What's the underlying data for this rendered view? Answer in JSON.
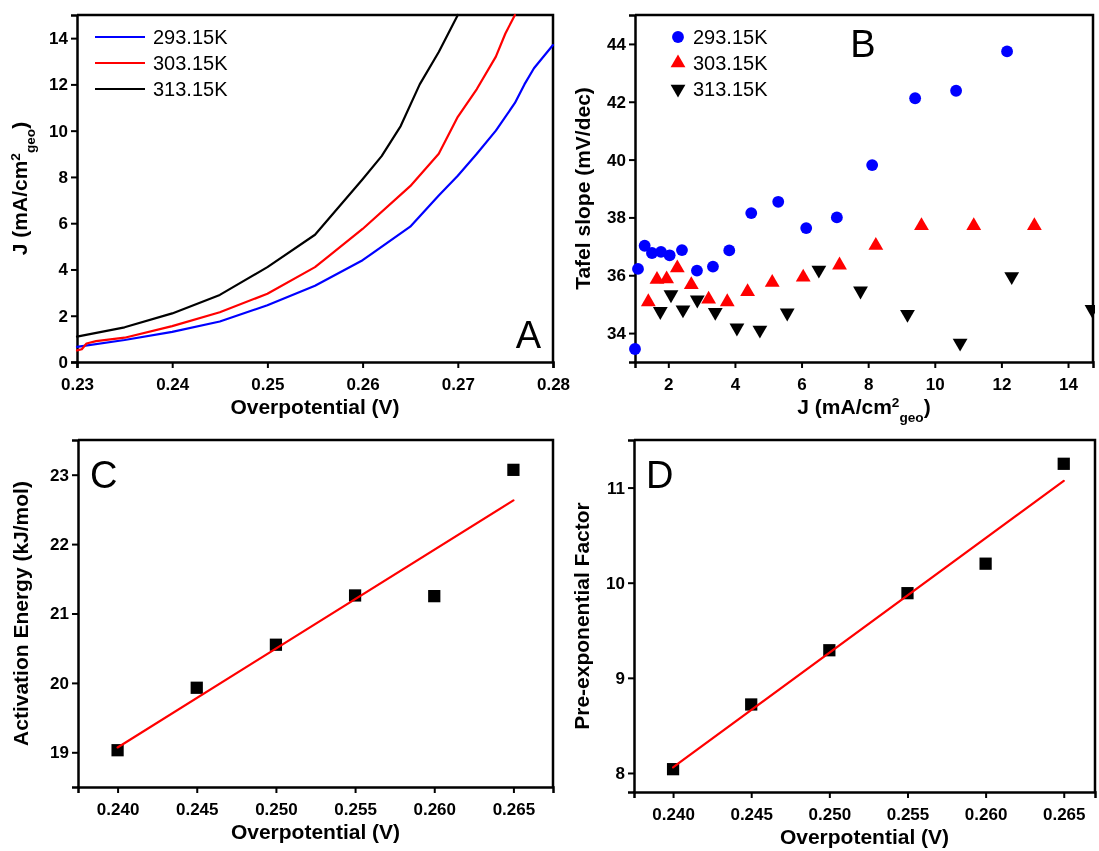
{
  "chart_data": [
    {
      "type": "line",
      "xlabel": "Overpotential (V)",
      "ylabel": "J (mA/cm$^{2}$$_{geo}$)",
      "annotations": [
        "A"
      ],
      "xlim": [
        0.23,
        0.28
      ],
      "xticks": [
        0.23,
        0.24,
        0.25,
        0.26,
        0.27,
        0.28
      ],
      "ylim": [
        0,
        15
      ],
      "yticks": [
        0,
        2,
        4,
        6,
        8,
        10,
        12,
        14
      ],
      "legend": "top left",
      "line_style": "solid",
      "series": [
        {
          "name": "293.15K",
          "color": "#0000ff",
          "x": [
            0.23,
            0.235,
            0.24,
            0.245,
            0.25,
            0.255,
            0.26,
            0.265,
            0.268,
            0.27,
            0.272,
            0.274,
            0.276,
            0.277,
            0.278,
            0.28
          ],
          "values": [
            0.65,
            0.95,
            1.3,
            1.75,
            2.45,
            3.3,
            4.4,
            5.85,
            7.2,
            8.05,
            9.0,
            10.0,
            11.2,
            12.0,
            12.7,
            13.7
          ]
        },
        {
          "name": "303.15K",
          "color": "#ff0000",
          "x": [
            0.23,
            0.2305,
            0.231,
            0.232,
            0.235,
            0.24,
            0.245,
            0.25,
            0.255,
            0.26,
            0.265,
            0.268,
            0.27,
            0.272,
            0.274,
            0.275,
            0.276
          ],
          "values": [
            0.5,
            0.55,
            0.8,
            0.9,
            1.05,
            1.55,
            2.15,
            2.95,
            4.1,
            5.75,
            7.6,
            9.0,
            10.6,
            11.8,
            13.2,
            14.2,
            15
          ]
        },
        {
          "name": "313.15K",
          "color": "#000000",
          "x": [
            0.23,
            0.235,
            0.24,
            0.245,
            0.25,
            0.255,
            0.26,
            0.262,
            0.264,
            0.266,
            0.268,
            0.27
          ],
          "values": [
            1.1,
            1.5,
            2.1,
            2.9,
            4.1,
            5.5,
            7.9,
            8.9,
            10.2,
            12.0,
            13.4,
            15
          ]
        }
      ]
    },
    {
      "type": "scatter",
      "xlabel": "J (mA/cm$^{2}$$_{geo}$)",
      "ylabel": "Tafel slope (mV/dec)",
      "annotations": [
        "B"
      ],
      "xlim": [
        1,
        14.75
      ],
      "xticks": [
        2,
        4,
        6,
        8,
        10,
        12,
        14
      ],
      "ylim": [
        33,
        45
      ],
      "yticks": [
        34,
        36,
        38,
        40,
        42,
        44
      ],
      "legend": "top left",
      "series": [
        {
          "name": "293.15K",
          "color": "#0000ff",
          "marker": "circle",
          "x": [
            1.0,
            1.09,
            1.29,
            1.51,
            1.78,
            2.04,
            2.41,
            2.86,
            3.34,
            3.83,
            4.49,
            5.3,
            6.14,
            7.06,
            8.12,
            9.41,
            10.64,
            12.17
          ],
          "values": [
            33.45,
            36.22,
            37.02,
            36.77,
            36.81,
            36.69,
            36.87,
            36.16,
            36.3,
            36.86,
            38.15,
            38.54,
            37.63,
            38.0,
            39.81,
            42.12,
            42.38,
            43.74
          ]
        },
        {
          "name": "303.15K",
          "color": "#ff0000",
          "marker": "triangle",
          "x": [
            1.4,
            1.66,
            1.95,
            2.27,
            2.69,
            3.21,
            3.77,
            4.38,
            5.12,
            6.05,
            7.14,
            8.23,
            9.6,
            11.17,
            12.99
          ],
          "values": [
            35.08,
            35.85,
            35.87,
            36.25,
            35.67,
            35.17,
            35.08,
            35.43,
            35.75,
            35.93,
            36.35,
            37.03,
            37.71,
            37.71,
            37.71
          ]
        },
        {
          "name": "313.15K",
          "color": "#000000",
          "marker": "triangle-down",
          "x": [
            1.76,
            2.08,
            2.44,
            2.87,
            3.41,
            4.06,
            4.75,
            5.57,
            6.52,
            7.77,
            9.18,
            10.76,
            12.31,
            14.72
          ],
          "values": [
            34.75,
            35.33,
            34.81,
            35.15,
            34.72,
            34.18,
            34.11,
            34.7,
            36.18,
            35.46,
            34.65,
            33.66,
            35.96,
            34.82
          ]
        }
      ]
    },
    {
      "type": "scatter",
      "xlabel": "Overpotential (V)",
      "ylabel": "Activation Energy (kJ/mol)",
      "annotations": [
        "C"
      ],
      "xlim": [
        0.2375,
        0.2675
      ],
      "xticks": [
        {
          "value": 0.24,
          "label": "0.240"
        },
        {
          "value": 0.245,
          "label": "0.245"
        },
        {
          "value": 0.25,
          "label": "0.250"
        },
        {
          "value": 0.255,
          "label": "0.255"
        },
        {
          "value": 0.26,
          "label": "0.260"
        },
        {
          "value": 0.265,
          "label": "0.265"
        }
      ],
      "ylim": [
        18.5,
        23.5
      ],
      "yticks": [
        19,
        20,
        21,
        22,
        23
      ],
      "series": [
        {
          "color": "#000000",
          "marker": "square",
          "x": [
            0.24,
            0.245,
            0.25,
            0.255,
            0.26,
            0.265
          ],
          "values": [
            19.03,
            19.93,
            20.55,
            21.26,
            21.25,
            23.07
          ]
        },
        {
          "type": "line",
          "color": "#ff0000",
          "x": [
            0.24,
            0.265
          ],
          "values": [
            19.07,
            22.63
          ]
        }
      ]
    },
    {
      "type": "scatter",
      "xlabel": "Overpotential (V)",
      "ylabel": "Pre-exponential Factor",
      "annotations": [
        "D"
      ],
      "xlim": [
        0.2375,
        0.267
      ],
      "xticks": [
        {
          "value": 0.24,
          "label": "0.240"
        },
        {
          "value": 0.245,
          "label": "0.245"
        },
        {
          "value": 0.25,
          "label": "0.250"
        },
        {
          "value": 0.255,
          "label": "0.255"
        },
        {
          "value": 0.26,
          "label": "0.260"
        },
        {
          "value": 0.265,
          "label": "0.265"
        }
      ],
      "ylim": [
        7.8,
        11.5
      ],
      "yticks": [
        8,
        9,
        10,
        11
      ],
      "series": [
        {
          "color": "#000000",
          "marker": "square",
          "x": [
            0.24,
            0.245,
            0.25,
            0.255,
            0.26,
            0.265
          ],
          "values": [
            8.04,
            8.72,
            9.29,
            9.89,
            10.2,
            11.25
          ]
        },
        {
          "type": "line",
          "color": "#ff0000",
          "x": [
            0.24,
            0.265
          ],
          "values": [
            8.06,
            11.07
          ]
        }
      ]
    }
  ]
}
